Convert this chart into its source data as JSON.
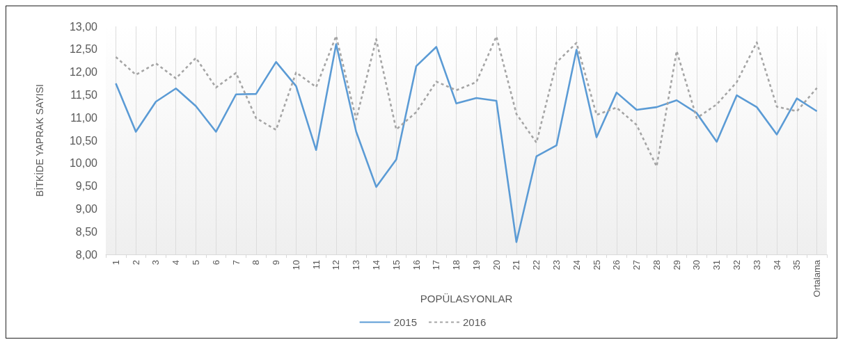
{
  "chart_data": {
    "type": "line",
    "xlabel": "POPÜLASYONLAR",
    "ylabel": "BİTKİDE YAPRAK SAYISI",
    "categories": [
      "1",
      "2",
      "3",
      "4",
      "5",
      "6",
      "7",
      "8",
      "9",
      "10",
      "11",
      "12",
      "13",
      "14",
      "15",
      "16",
      "17",
      "18",
      "19",
      "20",
      "21",
      "22",
      "23",
      "24",
      "25",
      "26",
      "27",
      "28",
      "29",
      "30",
      "31",
      "32",
      "33",
      "34",
      "35",
      "Ortalama"
    ],
    "series": [
      {
        "name": "2015",
        "color": "#5b9bd5",
        "line_style": "solid",
        "values": [
          11.75,
          10.69,
          11.35,
          11.64,
          11.25,
          10.69,
          11.51,
          11.52,
          12.22,
          11.69,
          10.29,
          12.61,
          10.69,
          9.48,
          10.08,
          12.13,
          12.55,
          11.31,
          11.43,
          11.37,
          8.27,
          10.15,
          10.39,
          12.49,
          10.57,
          11.55,
          11.17,
          11.23,
          11.38,
          11.1,
          10.47,
          11.49,
          11.23,
          10.63,
          11.42,
          11.14
        ]
      },
      {
        "name": "2016",
        "color": "#a5a5a5",
        "line_style": "dashed",
        "values": [
          12.33,
          11.94,
          12.19,
          11.86,
          12.31,
          11.66,
          11.98,
          10.99,
          10.73,
          11.99,
          11.67,
          12.79,
          10.96,
          12.72,
          10.74,
          11.12,
          11.79,
          11.6,
          11.78,
          12.78,
          11.08,
          10.45,
          12.21,
          12.64,
          11.06,
          11.22,
          10.84,
          9.93,
          12.46,
          10.99,
          11.29,
          11.78,
          12.65,
          11.24,
          11.14,
          11.65
        ]
      }
    ],
    "ylim": [
      8,
      13
    ],
    "yticks": [
      {
        "value": 8,
        "label": "8,00"
      },
      {
        "value": 8.5,
        "label": "8,50"
      },
      {
        "value": 9,
        "label": "9,00"
      },
      {
        "value": 9.5,
        "label": "9,50"
      },
      {
        "value": 10,
        "label": "10,00"
      },
      {
        "value": 10.5,
        "label": "10,50"
      },
      {
        "value": 11,
        "label": "11,00"
      },
      {
        "value": 11.5,
        "label": "11,50"
      },
      {
        "value": 12,
        "label": "12,00"
      },
      {
        "value": 12.5,
        "label": "12,50"
      },
      {
        "value": 13,
        "label": "13,00"
      }
    ],
    "grid": "x",
    "legend": "bottom",
    "marker": "none"
  }
}
